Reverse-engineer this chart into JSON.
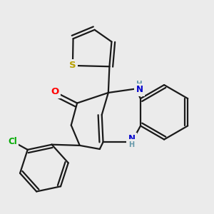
{
  "background_color": "#ebebeb",
  "bond_color": "#1a1a1a",
  "atom_colors": {
    "S": "#b8a000",
    "O": "#ff0000",
    "N": "#0000cc",
    "Cl": "#00aa00",
    "C": "#1a1a1a",
    "H": "#6699aa"
  },
  "figsize": [
    3.0,
    3.0
  ],
  "dpi": 100,
  "lw": 1.6
}
